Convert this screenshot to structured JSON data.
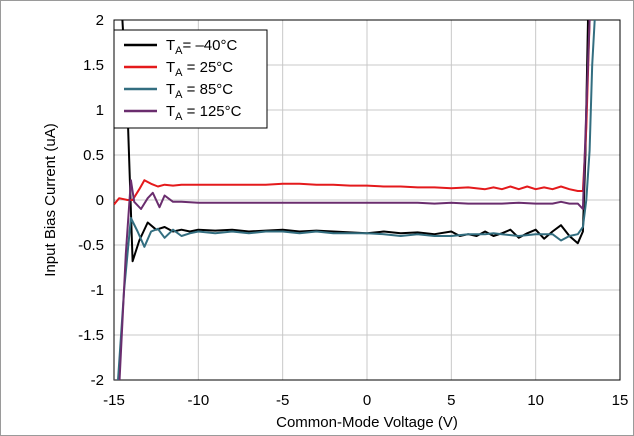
{
  "chart_data": {
    "type": "line",
    "xlabel": "Common-Mode Voltage (V)",
    "ylabel": "Input Bias Current (uA)",
    "xlim": [
      -15,
      15
    ],
    "ylim": [
      -2,
      2
    ],
    "xticks": [
      -15,
      -10,
      -5,
      0,
      5,
      10,
      15
    ],
    "yticks": [
      -2,
      -1.5,
      -1,
      -0.5,
      0,
      0.5,
      1,
      1.5,
      2
    ],
    "xtick_labels": [
      "-15",
      "-10",
      "-5",
      "0",
      "5",
      "10",
      "15"
    ],
    "ytick_labels": [
      "-2",
      "-1.5",
      "-1",
      "-0.5",
      "0",
      "0.5",
      "1",
      "1.5",
      "2"
    ],
    "grid": true,
    "legend_position": "top-left",
    "series": [
      {
        "name": "TA= –40°C",
        "label_main": "T",
        "label_sub": "A",
        "label_rest": "= –40°C",
        "color": "#000000",
        "x": [
          -14.5,
          -14.2,
          -13.9,
          -13.5,
          -13.0,
          -12.5,
          -12.0,
          -11.5,
          -11.0,
          -10.5,
          -10.0,
          -9.0,
          -8.0,
          -7.0,
          -6.0,
          -5.0,
          -4.0,
          -3.0,
          -2.0,
          -1.0,
          0.0,
          1.0,
          2.0,
          3.0,
          4.0,
          5.0,
          5.5,
          6.0,
          6.5,
          7.0,
          7.5,
          8.0,
          8.5,
          9.0,
          9.5,
          10.0,
          10.5,
          11.0,
          11.5,
          12.0,
          12.5,
          12.8,
          12.95,
          13.1
        ],
        "y": [
          2.0,
          1.0,
          -0.68,
          -0.45,
          -0.25,
          -0.33,
          -0.3,
          -0.35,
          -0.33,
          -0.35,
          -0.33,
          -0.34,
          -0.33,
          -0.35,
          -0.34,
          -0.33,
          -0.35,
          -0.34,
          -0.35,
          -0.36,
          -0.37,
          -0.35,
          -0.37,
          -0.36,
          -0.38,
          -0.35,
          -0.4,
          -0.38,
          -0.4,
          -0.35,
          -0.4,
          -0.37,
          -0.33,
          -0.42,
          -0.37,
          -0.33,
          -0.43,
          -0.35,
          -0.28,
          -0.4,
          -0.48,
          -0.35,
          0.5,
          2.0
        ]
      },
      {
        "name": "TA = 25°C",
        "label_main": "T",
        "label_sub": "A",
        "label_rest": " = 25°C",
        "color": "#e41a1c",
        "x": [
          -15.0,
          -14.7,
          -14.2,
          -13.9,
          -13.5,
          -13.2,
          -12.8,
          -12.4,
          -12.0,
          -11.5,
          -11.0,
          -10.0,
          -9.0,
          -8.0,
          -7.0,
          -6.0,
          -5.0,
          -4.0,
          -3.0,
          -2.0,
          -1.0,
          0.0,
          1.0,
          2.0,
          3.0,
          4.0,
          5.0,
          6.0,
          7.0,
          7.5,
          8.0,
          8.5,
          9.0,
          9.5,
          10.0,
          10.5,
          11.0,
          11.5,
          12.0,
          12.5,
          12.8,
          13.0,
          13.2,
          13.4
        ],
        "y": [
          -0.05,
          0.02,
          0.0,
          0.0,
          0.12,
          0.22,
          0.18,
          0.15,
          0.17,
          0.16,
          0.17,
          0.17,
          0.17,
          0.17,
          0.17,
          0.17,
          0.18,
          0.18,
          0.17,
          0.17,
          0.16,
          0.16,
          0.15,
          0.15,
          0.14,
          0.14,
          0.13,
          0.14,
          0.12,
          0.14,
          0.12,
          0.15,
          0.12,
          0.15,
          0.12,
          0.14,
          0.12,
          0.15,
          0.12,
          0.1,
          0.1,
          0.8,
          2.0,
          2.1
        ]
      },
      {
        "name": "TA = 85°C",
        "label_main": "T",
        "label_sub": "A",
        "label_rest": " = 85°C",
        "color": "#336e80",
        "x": [
          -15.0,
          -14.8,
          -14.4,
          -14.0,
          -13.6,
          -13.2,
          -12.8,
          -12.4,
          -12.0,
          -11.5,
          -11.0,
          -10.5,
          -10.0,
          -9.0,
          -8.0,
          -7.0,
          -6.0,
          -5.0,
          -4.0,
          -3.0,
          -2.0,
          -1.0,
          0.0,
          1.0,
          2.0,
          3.0,
          4.0,
          5.0,
          6.0,
          7.0,
          7.5,
          8.0,
          9.0,
          10.0,
          11.0,
          11.5,
          12.0,
          12.5,
          12.8,
          13.0,
          13.2,
          13.35,
          13.5
        ],
        "y": [
          -2.0,
          -2.1,
          -1.0,
          -0.2,
          -0.35,
          -0.52,
          -0.35,
          -0.32,
          -0.42,
          -0.33,
          -0.4,
          -0.37,
          -0.35,
          -0.37,
          -0.35,
          -0.37,
          -0.35,
          -0.35,
          -0.37,
          -0.35,
          -0.37,
          -0.37,
          -0.37,
          -0.38,
          -0.4,
          -0.38,
          -0.4,
          -0.4,
          -0.38,
          -0.38,
          -0.37,
          -0.38,
          -0.4,
          -0.38,
          -0.38,
          -0.45,
          -0.4,
          -0.38,
          -0.3,
          0.0,
          0.55,
          1.5,
          2.0
        ]
      },
      {
        "name": "TA = 125°C",
        "label_main": "T",
        "label_sub": "A",
        "label_rest": " = 125°C",
        "color": "#6a2d6e",
        "x": [
          -15.0,
          -14.7,
          -14.3,
          -14.0,
          -13.8,
          -13.4,
          -13.0,
          -12.7,
          -12.3,
          -12.0,
          -11.5,
          -11.0,
          -10.0,
          -9.0,
          -8.0,
          -7.0,
          -6.0,
          -5.0,
          -4.0,
          -3.0,
          -2.0,
          -1.0,
          0.0,
          1.0,
          2.0,
          3.0,
          4.0,
          5.0,
          6.0,
          7.0,
          8.0,
          9.0,
          10.0,
          11.0,
          11.5,
          12.0,
          12.5,
          12.8,
          13.0,
          13.2,
          13.4
        ],
        "y": [
          -2.0,
          -2.1,
          -0.6,
          0.22,
          -0.02,
          -0.1,
          0.02,
          0.08,
          -0.08,
          0.05,
          -0.02,
          -0.02,
          -0.03,
          -0.03,
          -0.03,
          -0.03,
          -0.03,
          -0.03,
          -0.03,
          -0.03,
          -0.03,
          -0.03,
          -0.03,
          -0.03,
          -0.03,
          -0.03,
          -0.04,
          -0.03,
          -0.04,
          -0.04,
          -0.04,
          -0.03,
          -0.04,
          -0.04,
          -0.02,
          -0.04,
          -0.04,
          -0.1,
          1.0,
          2.0,
          2.1
        ]
      }
    ]
  }
}
